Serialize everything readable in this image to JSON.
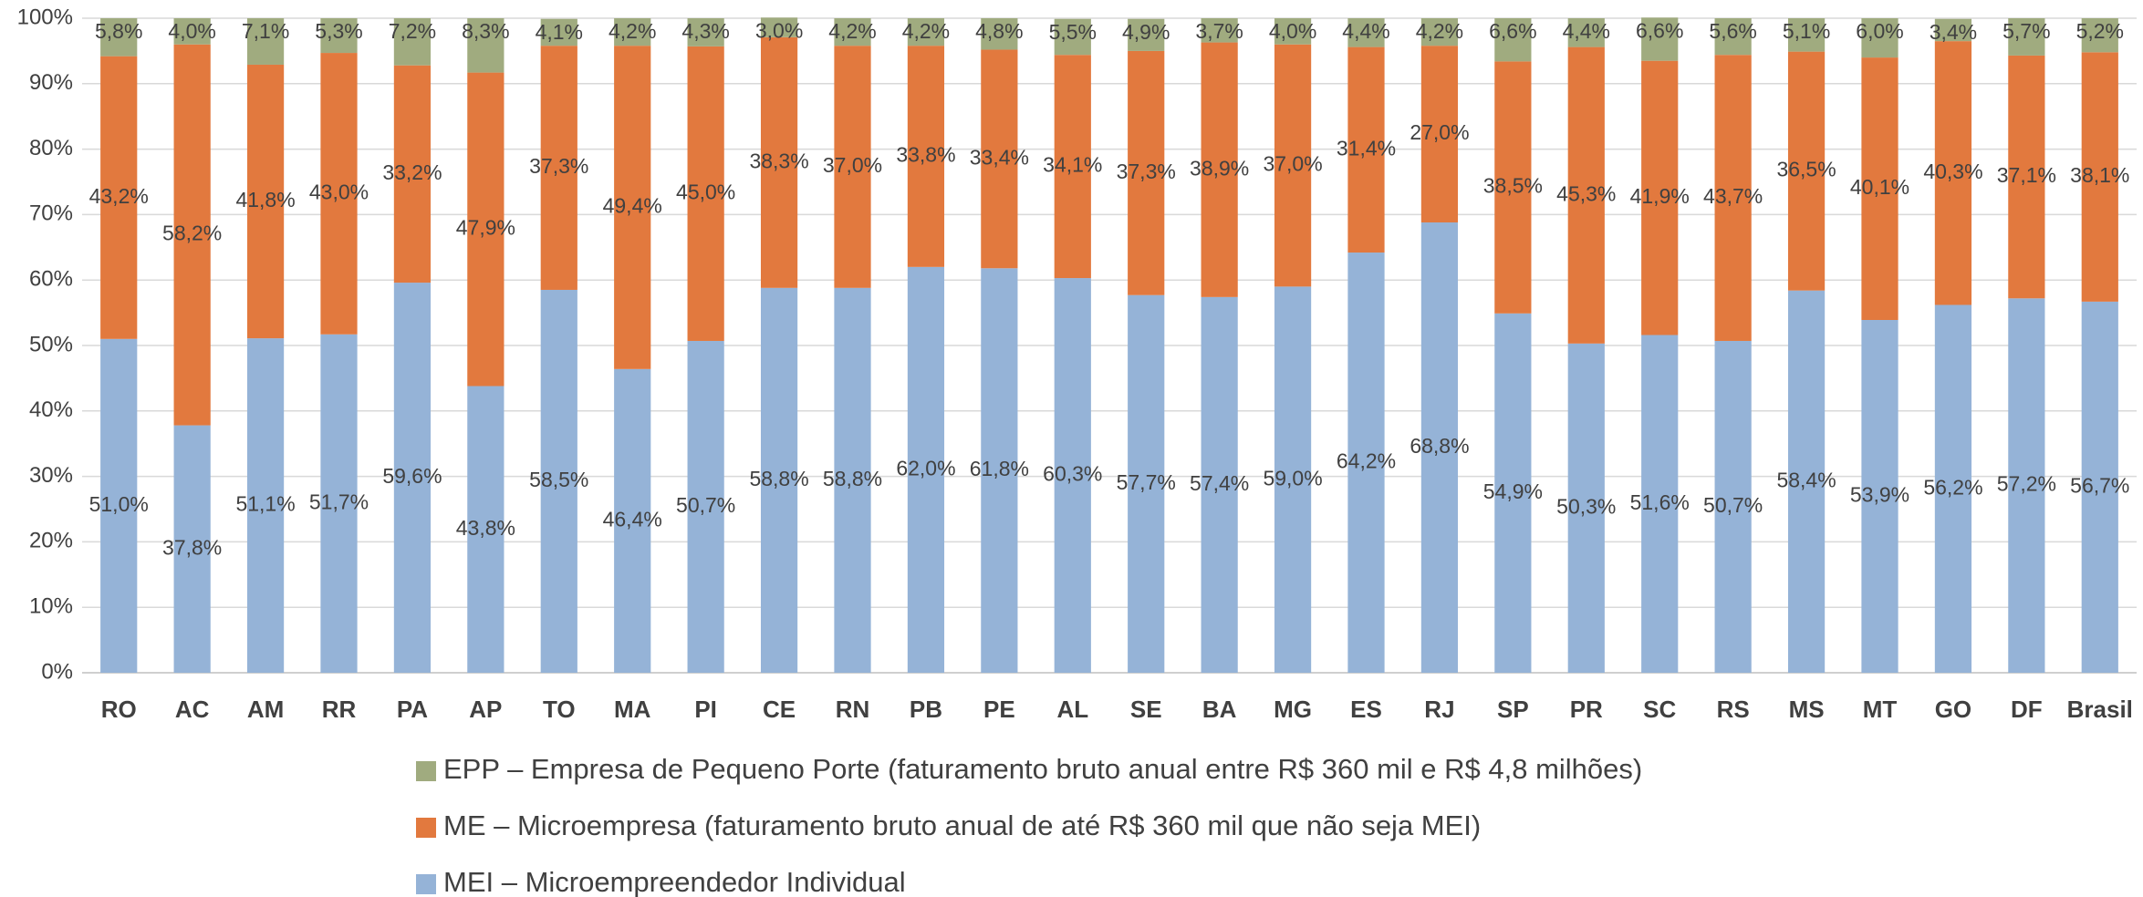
{
  "chart_data": {
    "type": "stacked-bar",
    "categories": [
      "RO",
      "AC",
      "AM",
      "RR",
      "PA",
      "AP",
      "TO",
      "MA",
      "PI",
      "CE",
      "RN",
      "PB",
      "PE",
      "AL",
      "SE",
      "BA",
      "MG",
      "ES",
      "RJ",
      "SP",
      "PR",
      "SC",
      "RS",
      "MS",
      "MT",
      "GO",
      "DF",
      "Brasil"
    ],
    "series": [
      {
        "name": "MEI – Microempreendedor Individual",
        "color": "#95b3d7",
        "values": [
          51.0,
          37.8,
          51.1,
          51.7,
          59.6,
          43.8,
          58.5,
          46.4,
          50.7,
          58.8,
          58.8,
          62.0,
          61.8,
          60.3,
          57.7,
          57.4,
          59.0,
          64.2,
          68.8,
          54.9,
          50.3,
          51.6,
          50.7,
          58.4,
          53.9,
          56.2,
          57.2,
          56.7
        ],
        "value_labels": [
          "51,0%",
          "37,8%",
          "51,1%",
          "51,7%",
          "59,6%",
          "43,8%",
          "58,5%",
          "46,4%",
          "50,7%",
          "58,8%",
          "58,8%",
          "62,0%",
          "61,8%",
          "60,3%",
          "57,7%",
          "57,4%",
          "59,0%",
          "64,2%",
          "68,8%",
          "54,9%",
          "50,3%",
          "51,6%",
          "50,7%",
          "58,4%",
          "53,9%",
          "56,2%",
          "57,2%",
          "56,7%"
        ]
      },
      {
        "name": "ME – Microempresa (faturamento bruto anual de até R$ 360 mil que não seja MEI)",
        "color": "#e2793e",
        "values": [
          43.2,
          58.2,
          41.8,
          43.0,
          33.2,
          47.9,
          37.3,
          49.4,
          45.0,
          38.3,
          37.0,
          33.8,
          33.4,
          34.1,
          37.3,
          38.9,
          37.0,
          31.4,
          27.0,
          38.5,
          45.3,
          41.9,
          43.7,
          36.5,
          40.1,
          40.3,
          37.1,
          38.1
        ],
        "value_labels": [
          "43,2%",
          "58,2%",
          "41,8%",
          "43,0%",
          "33,2%",
          "47,9%",
          "37,3%",
          "49,4%",
          "45,0%",
          "38,3%",
          "37,0%",
          "33,8%",
          "33,4%",
          "34,1%",
          "37,3%",
          "38,9%",
          "37,0%",
          "31,4%",
          "27,0%",
          "38,5%",
          "45,3%",
          "41,9%",
          "43,7%",
          "36,5%",
          "40,1%",
          "40,3%",
          "37,1%",
          "38,1%"
        ]
      },
      {
        "name": "EPP – Empresa de Pequeno Porte (faturamento bruto anual entre R$ 360 mil e R$ 4,8 milhões)",
        "color": "#a0ab7f",
        "values": [
          5.8,
          4.0,
          7.1,
          5.3,
          7.2,
          8.3,
          4.1,
          4.2,
          4.3,
          3.0,
          4.2,
          4.2,
          4.8,
          5.5,
          4.9,
          3.7,
          4.0,
          4.4,
          4.2,
          6.6,
          4.4,
          6.6,
          5.6,
          5.1,
          6.0,
          3.4,
          5.7,
          5.2
        ],
        "value_labels": [
          "5,8%",
          "4,0%",
          "7,1%",
          "5,3%",
          "7,2%",
          "8,3%",
          "4,1%",
          "4,2%",
          "4,3%",
          "3,0%",
          "4,2%",
          "4,2%",
          "4,8%",
          "5,5%",
          "4,9%",
          "3,7%",
          "4,0%",
          "4,4%",
          "4,2%",
          "6,6%",
          "4,4%",
          "6,6%",
          "5,6%",
          "5,1%",
          "6,0%",
          "3,4%",
          "5,7%",
          "5,2%"
        ]
      }
    ],
    "ylim": [
      0,
      100
    ],
    "yticks": [
      {
        "value": 0,
        "label": "0%"
      },
      {
        "value": 10,
        "label": "10%"
      },
      {
        "value": 20,
        "label": "20%"
      },
      {
        "value": 30,
        "label": "30%"
      },
      {
        "value": 40,
        "label": "40%"
      },
      {
        "value": 50,
        "label": "50%"
      },
      {
        "value": 60,
        "label": "60%"
      },
      {
        "value": 70,
        "label": "70%"
      },
      {
        "value": 80,
        "label": "80%"
      },
      {
        "value": 90,
        "label": "90%"
      },
      {
        "value": 100,
        "label": "100%"
      }
    ],
    "grid": true,
    "legend": "bottom"
  }
}
